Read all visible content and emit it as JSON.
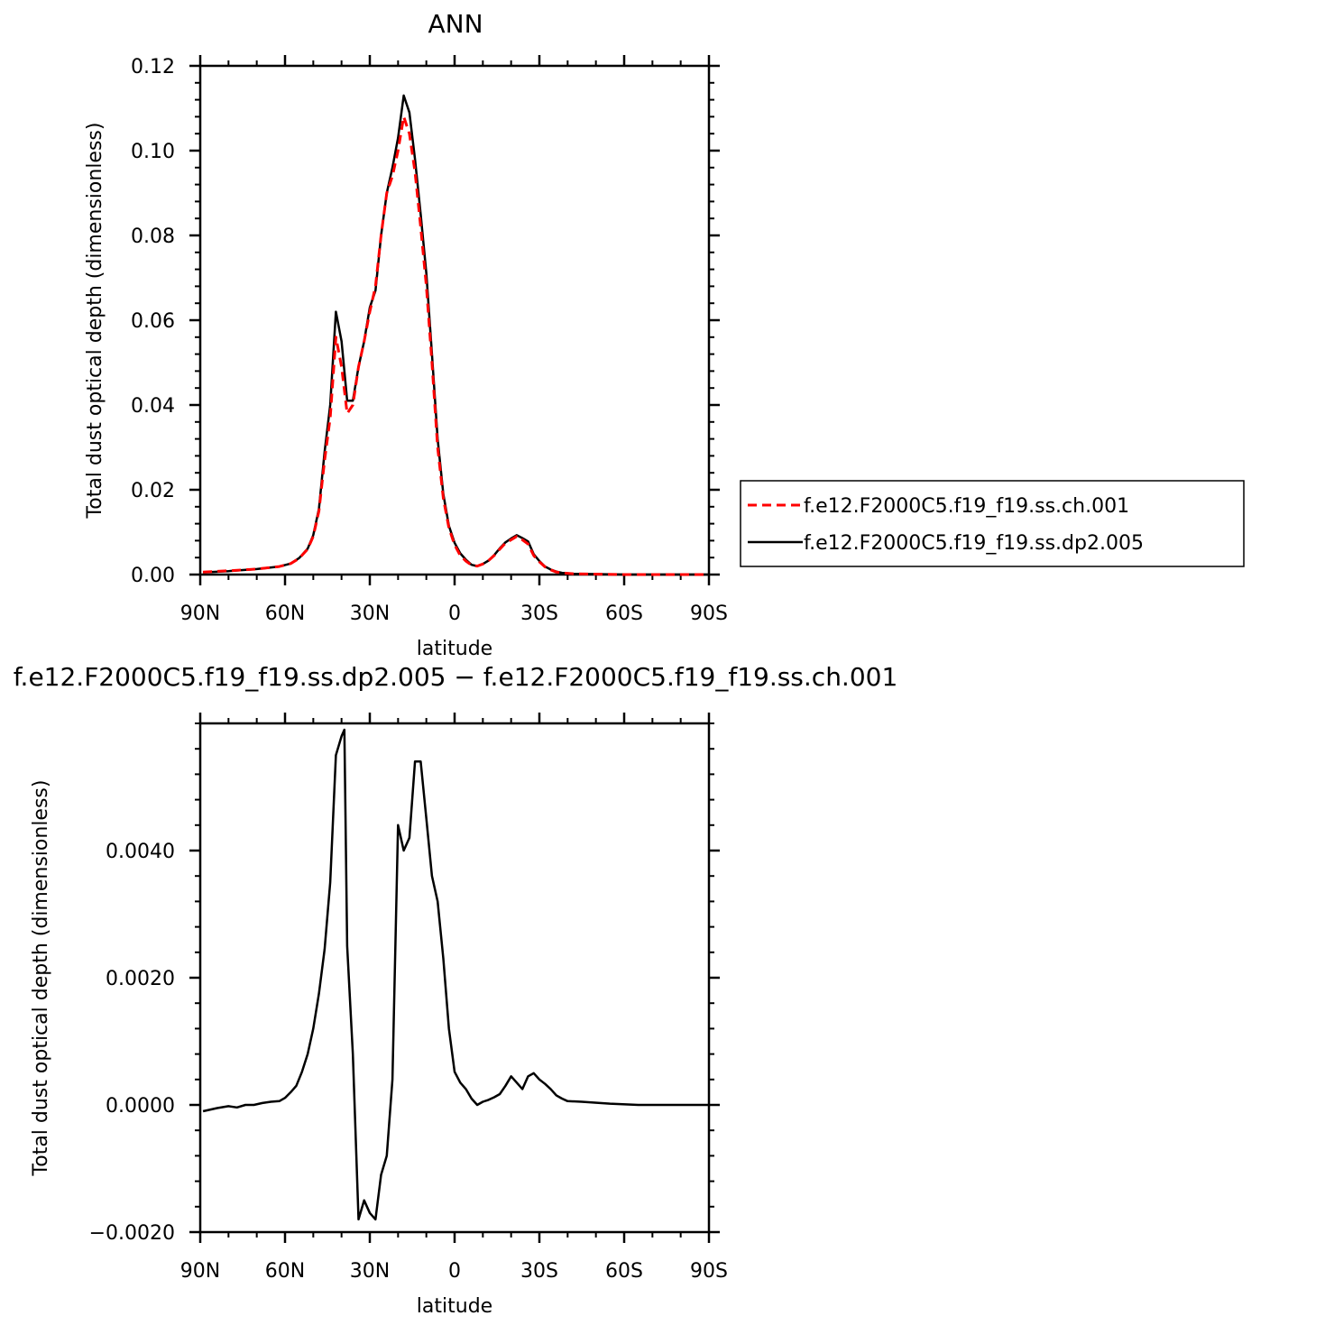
{
  "chart_data": [
    {
      "type": "line",
      "title": "ANN",
      "xlabel": "latitude",
      "ylabel": "Total dust optical depth (dimensionless)",
      "xlim": [
        90,
        -90
      ],
      "ylim": [
        0,
        0.12
      ],
      "x_ticks": [
        90,
        60,
        30,
        0,
        -30,
        -60,
        -90
      ],
      "x_tick_labels": [
        "90N",
        "60N",
        "30N",
        "0",
        "30S",
        "60S",
        "90S"
      ],
      "y_ticks": [
        0,
        0.02,
        0.04,
        0.06,
        0.08,
        0.1,
        0.12
      ],
      "y_tick_labels": [
        "0.00",
        "0.02",
        "0.04",
        "0.06",
        "0.08",
        "0.10",
        "0.12"
      ],
      "legend_position": "right",
      "series": [
        {
          "name": "f.e12.F2000C5.f19_f19.ss.ch.001",
          "color": "#ff0000",
          "dash": "dashed",
          "x": [
            89,
            80,
            70,
            62,
            58,
            55,
            52,
            50,
            48,
            46,
            44,
            42,
            40,
            38,
            36,
            34,
            32,
            30,
            28,
            26,
            24,
            22,
            20,
            18,
            16,
            14,
            12,
            10,
            8,
            6,
            4,
            2,
            0,
            -2,
            -4,
            -6,
            -8,
            -10,
            -12,
            -14,
            -16,
            -18,
            -20,
            -22,
            -24,
            -26,
            -28,
            -30,
            -32,
            -34,
            -36,
            -38,
            -42,
            -50,
            -60,
            -90
          ],
          "y": [
            0.0006,
            0.0009,
            0.0013,
            0.0019,
            0.0026,
            0.0038,
            0.006,
            0.009,
            0.015,
            0.027,
            0.037,
            0.056,
            0.049,
            0.038,
            0.04,
            0.049,
            0.055,
            0.062,
            0.068,
            0.08,
            0.09,
            0.094,
            0.1,
            0.108,
            0.104,
            0.095,
            0.082,
            0.068,
            0.05,
            0.03,
            0.018,
            0.011,
            0.007,
            0.0045,
            0.0032,
            0.0022,
            0.002,
            0.0025,
            0.0033,
            0.0045,
            0.006,
            0.0074,
            0.0082,
            0.009,
            0.0082,
            0.0072,
            0.0045,
            0.003,
            0.0018,
            0.0011,
            0.0006,
            0.0004,
            0.0002,
            0.0001,
            0.0,
            0.0
          ]
        },
        {
          "name": "f.e12.F2000C5.f19_f19.ss.dp2.005",
          "color": "#000000",
          "dash": "solid",
          "x": [
            89,
            80,
            70,
            62,
            58,
            55,
            52,
            50,
            48,
            46,
            44,
            42,
            40,
            38,
            36,
            34,
            32,
            30,
            28,
            26,
            24,
            22,
            20,
            18,
            16,
            14,
            12,
            10,
            8,
            6,
            4,
            2,
            0,
            -2,
            -4,
            -6,
            -8,
            -10,
            -12,
            -14,
            -16,
            -18,
            -20,
            -22,
            -24,
            -26,
            -28,
            -30,
            -32,
            -34,
            -36,
            -38,
            -42,
            -50,
            -60,
            -90
          ],
          "y": [
            0.0005,
            0.0008,
            0.0013,
            0.0019,
            0.0026,
            0.0039,
            0.0061,
            0.0093,
            0.0155,
            0.029,
            0.04,
            0.062,
            0.055,
            0.041,
            0.041,
            0.049,
            0.055,
            0.063,
            0.067,
            0.08,
            0.09,
            0.096,
            0.103,
            0.113,
            0.109,
            0.098,
            0.085,
            0.071,
            0.052,
            0.032,
            0.019,
            0.0115,
            0.0075,
            0.005,
            0.0035,
            0.0023,
            0.002,
            0.0025,
            0.0033,
            0.0046,
            0.0062,
            0.0076,
            0.0085,
            0.0093,
            0.0086,
            0.0078,
            0.0048,
            0.0032,
            0.0019,
            0.0012,
            0.0007,
            0.0004,
            0.0002,
            0.0001,
            0.0,
            0.0
          ]
        }
      ]
    },
    {
      "type": "line",
      "title": "f.e12.F2000C5.f19_f19.ss.dp2.005 − f.e12.F2000C5.f19_f19.ss.ch.001",
      "xlabel": "latitude",
      "ylabel": "Total dust optical depth (dimensionless)",
      "xlim": [
        90,
        -90
      ],
      "ylim": [
        -0.002,
        0.006
      ],
      "x_ticks": [
        90,
        60,
        30,
        0,
        -30,
        -60,
        -90
      ],
      "x_tick_labels": [
        "90N",
        "60N",
        "30N",
        "0",
        "30S",
        "60S",
        "90S"
      ],
      "y_ticks": [
        -0.002,
        0.0,
        0.002,
        0.004
      ],
      "y_tick_labels": [
        "−0.0020",
        "0.0000",
        "0.0020",
        "0.0040"
      ],
      "series": [
        {
          "color": "#000000",
          "dash": "solid",
          "x": [
            89,
            84,
            80,
            77,
            74,
            71,
            68,
            65,
            62,
            60,
            58,
            56,
            54,
            52,
            50,
            48,
            46,
            44,
            42,
            40,
            39,
            38,
            36,
            34,
            32,
            30,
            28,
            26,
            24,
            22,
            20,
            18,
            16,
            14,
            12,
            10,
            8,
            6,
            4,
            2,
            0,
            -2,
            -4,
            -6,
            -8,
            -10,
            -12,
            -14,
            -16,
            -18,
            -20,
            -22,
            -24,
            -26,
            -28,
            -30,
            -32,
            -34,
            -36,
            -38,
            -40,
            -45,
            -55,
            -65,
            -90
          ],
          "y": [
            -0.0001,
            -5e-05,
            -2e-05,
            -4e-05,
            0.0,
            0.0,
            3e-05,
            5e-05,
            6e-05,
            0.00011,
            0.0002,
            0.0003,
            0.00052,
            0.0008,
            0.0012,
            0.00175,
            0.00245,
            0.0035,
            0.0055,
            0.0058,
            0.0059,
            0.0025,
            0.0008,
            -0.0018,
            -0.0015,
            -0.0017,
            -0.0018,
            -0.0011,
            -0.0008,
            0.0004,
            0.0044,
            0.004,
            0.0042,
            0.0054,
            0.0054,
            0.0045,
            0.0036,
            0.0032,
            0.0023,
            0.0012,
            0.00052,
            0.00035,
            0.00025,
            0.0001,
            0.0,
            5e-05,
            8e-05,
            0.00012,
            0.00017,
            0.0003,
            0.00045,
            0.00035,
            0.00025,
            0.00045,
            0.0005,
            0.0004,
            0.00033,
            0.00025,
            0.00015,
            0.0001,
            6e-05,
            5e-05,
            2e-05,
            0.0,
            0.0
          ]
        }
      ]
    }
  ]
}
